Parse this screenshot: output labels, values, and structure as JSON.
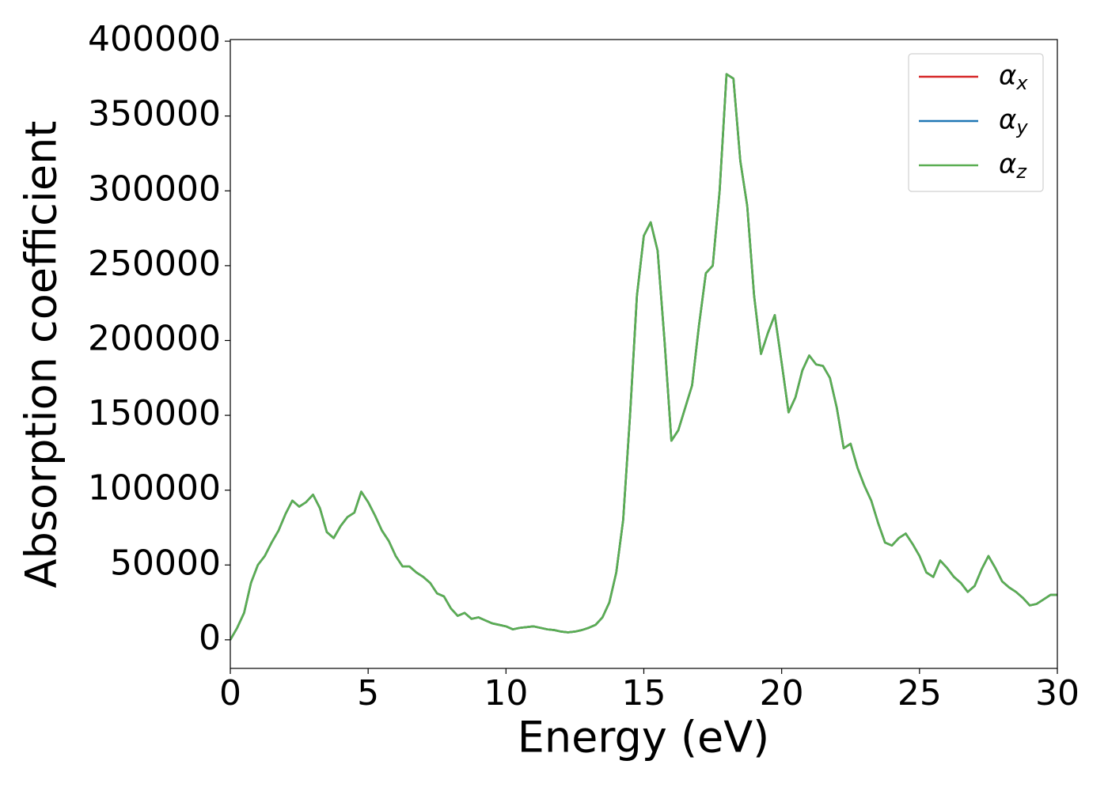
{
  "chart_data": {
    "type": "line",
    "xlabel": "Energy (eV)",
    "ylabel": "Absorption coefficient",
    "x": [
      0,
      0.25,
      0.5,
      0.75,
      1,
      1.25,
      1.5,
      1.75,
      2,
      2.25,
      2.5,
      2.75,
      3,
      3.25,
      3.5,
      3.75,
      4,
      4.25,
      4.5,
      4.75,
      5,
      5.25,
      5.5,
      5.75,
      6,
      6.25,
      6.5,
      6.75,
      7,
      7.25,
      7.5,
      7.75,
      8,
      8.25,
      8.5,
      8.75,
      9,
      9.25,
      9.5,
      9.75,
      10,
      10.25,
      10.5,
      10.75,
      11,
      11.25,
      11.5,
      11.75,
      12,
      12.25,
      12.5,
      12.75,
      13,
      13.25,
      13.5,
      13.75,
      14,
      14.25,
      14.5,
      14.75,
      15,
      15.25,
      15.5,
      15.75,
      16,
      16.25,
      16.5,
      16.75,
      17,
      17.25,
      17.5,
      17.75,
      18,
      18.25,
      18.5,
      18.75,
      19,
      19.25,
      19.5,
      19.75,
      20,
      20.25,
      20.5,
      20.75,
      21,
      21.25,
      21.5,
      21.75,
      22,
      22.25,
      22.5,
      22.75,
      23,
      23.25,
      23.5,
      23.75,
      24,
      24.25,
      24.5,
      24.75,
      25,
      25.25,
      25.5,
      25.75,
      26,
      26.25,
      26.5,
      26.75,
      27,
      27.25,
      27.5,
      27.75,
      28,
      28.25,
      28.5,
      28.75,
      29,
      29.25,
      29.5,
      29.75,
      30
    ],
    "series": [
      {
        "name": "αx",
        "color": "#d62728",
        "values": [
          0,
          8000,
          18000,
          38000,
          50000,
          56000,
          65000,
          73000,
          84000,
          93000,
          89000,
          92000,
          97000,
          88000,
          72000,
          68000,
          76000,
          82000,
          85000,
          99000,
          92000,
          83000,
          73000,
          66000,
          56000,
          49000,
          49000,
          45000,
          42000,
          38000,
          31000,
          29000,
          21000,
          16000,
          18000,
          14000,
          15000,
          13000,
          11000,
          10000,
          9000,
          7000,
          8000,
          8500,
          9000,
          8000,
          7000,
          6500,
          5500,
          5000,
          5500,
          6500,
          8000,
          10000,
          15000,
          25000,
          45000,
          80000,
          150000,
          230000,
          270000,
          279000,
          260000,
          200000,
          133000,
          140000,
          155000,
          170000,
          210000,
          245000,
          250000,
          300000,
          378000,
          375000,
          320000,
          290000,
          230000,
          191000,
          205000,
          217000,
          185000,
          152000,
          162000,
          180000,
          190000,
          184000,
          183000,
          175000,
          155000,
          128000,
          131000,
          115000,
          103000,
          93000,
          78000,
          65000,
          63000,
          68000,
          71000,
          64000,
          56000,
          45000,
          42000,
          53000,
          48000,
          42000,
          38000,
          32000,
          36000,
          47000,
          56000,
          48000,
          39000,
          35000,
          32000,
          28000,
          23000,
          24000,
          27000,
          30000,
          30000
        ]
      },
      {
        "name": "αy",
        "color": "#1f77b4",
        "values": [
          0,
          8000,
          18000,
          38000,
          50000,
          56000,
          65000,
          73000,
          84000,
          93000,
          89000,
          92000,
          97000,
          88000,
          72000,
          68000,
          76000,
          82000,
          85000,
          99000,
          92000,
          83000,
          73000,
          66000,
          56000,
          49000,
          49000,
          45000,
          42000,
          38000,
          31000,
          29000,
          21000,
          16000,
          18000,
          14000,
          15000,
          13000,
          11000,
          10000,
          9000,
          7000,
          8000,
          8500,
          9000,
          8000,
          7000,
          6500,
          5500,
          5000,
          5500,
          6500,
          8000,
          10000,
          15000,
          25000,
          45000,
          80000,
          150000,
          230000,
          270000,
          279000,
          260000,
          200000,
          133000,
          140000,
          155000,
          170000,
          210000,
          245000,
          250000,
          300000,
          378000,
          375000,
          320000,
          290000,
          230000,
          191000,
          205000,
          217000,
          185000,
          152000,
          162000,
          180000,
          190000,
          184000,
          183000,
          175000,
          155000,
          128000,
          131000,
          115000,
          103000,
          93000,
          78000,
          65000,
          63000,
          68000,
          71000,
          64000,
          56000,
          45000,
          42000,
          53000,
          48000,
          42000,
          38000,
          32000,
          36000,
          47000,
          56000,
          48000,
          39000,
          35000,
          32000,
          28000,
          23000,
          24000,
          27000,
          30000,
          30000
        ]
      },
      {
        "name": "αz",
        "color": "#5aae52",
        "values": [
          0,
          8000,
          18000,
          38000,
          50000,
          56000,
          65000,
          73000,
          84000,
          93000,
          89000,
          92000,
          97000,
          88000,
          72000,
          68000,
          76000,
          82000,
          85000,
          99000,
          92000,
          83000,
          73000,
          66000,
          56000,
          49000,
          49000,
          45000,
          42000,
          38000,
          31000,
          29000,
          21000,
          16000,
          18000,
          14000,
          15000,
          13000,
          11000,
          10000,
          9000,
          7000,
          8000,
          8500,
          9000,
          8000,
          7000,
          6500,
          5500,
          5000,
          5500,
          6500,
          8000,
          10000,
          15000,
          25000,
          45000,
          80000,
          150000,
          230000,
          270000,
          279000,
          260000,
          200000,
          133000,
          140000,
          155000,
          170000,
          210000,
          245000,
          250000,
          300000,
          378000,
          375000,
          320000,
          290000,
          230000,
          191000,
          205000,
          217000,
          185000,
          152000,
          162000,
          180000,
          190000,
          184000,
          183000,
          175000,
          155000,
          128000,
          131000,
          115000,
          103000,
          93000,
          78000,
          65000,
          63000,
          68000,
          71000,
          64000,
          56000,
          45000,
          42000,
          53000,
          48000,
          42000,
          38000,
          32000,
          36000,
          47000,
          56000,
          48000,
          39000,
          35000,
          32000,
          28000,
          23000,
          24000,
          27000,
          30000,
          30000
        ]
      }
    ],
    "xlim": [
      0,
      30
    ],
    "xticks": [
      0,
      5,
      10,
      15,
      20,
      25,
      30
    ],
    "ylim": [
      -19100,
      401100
    ],
    "yticks": [
      0,
      50000,
      100000,
      150000,
      200000,
      250000,
      300000,
      350000,
      400000
    ],
    "legend": "upper right"
  }
}
